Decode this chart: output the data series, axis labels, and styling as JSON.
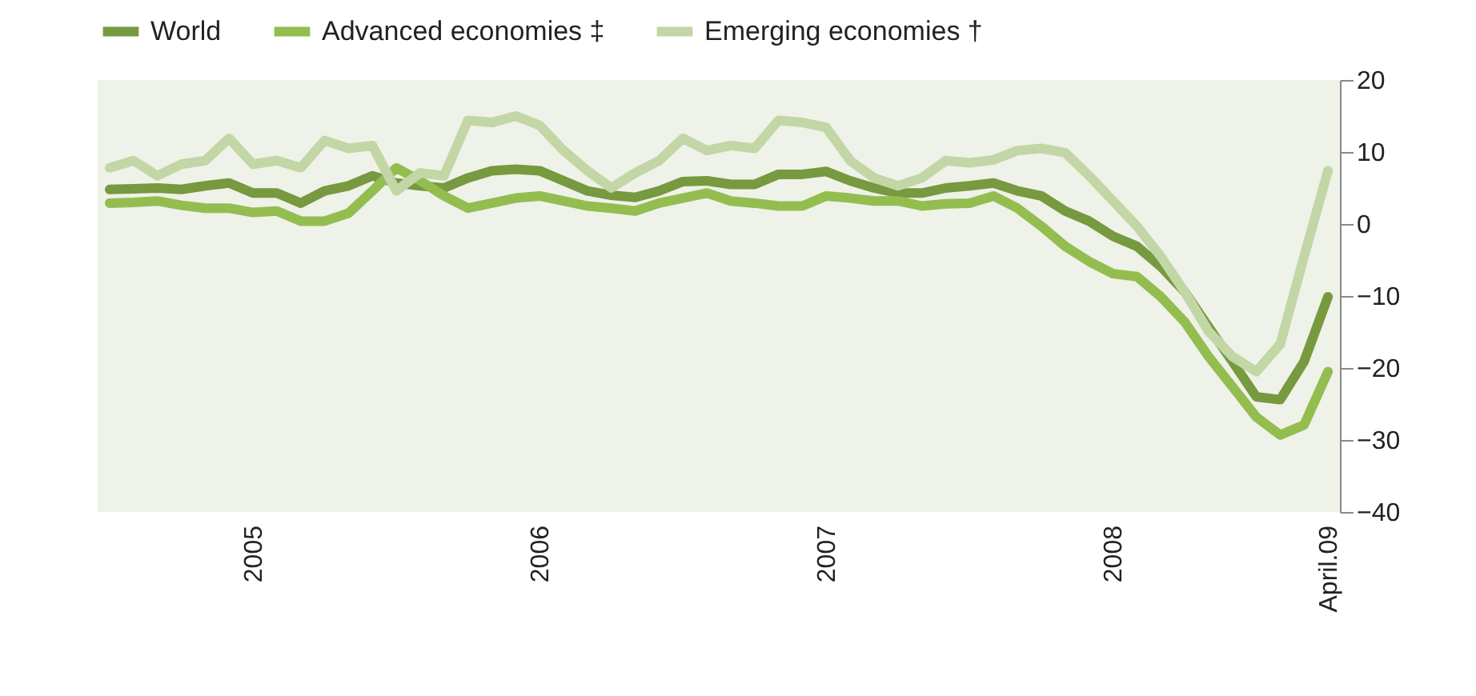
{
  "chart_data": {
    "type": "line",
    "categories": [
      null,
      null,
      null,
      null,
      null,
      null,
      "2005",
      null,
      null,
      null,
      null,
      null,
      null,
      null,
      null,
      null,
      null,
      null,
      "2006",
      null,
      null,
      null,
      null,
      null,
      null,
      null,
      null,
      null,
      null,
      null,
      "2007",
      null,
      null,
      null,
      null,
      null,
      null,
      null,
      null,
      null,
      null,
      null,
      "2008",
      null,
      null,
      null,
      null,
      null,
      null,
      null,
      null,
      "April.09"
    ],
    "series": [
      {
        "name": "World",
        "color": "#77993f",
        "values": [
          4.8,
          4.9,
          5,
          4.8,
          5.3,
          5.7,
          4.3,
          4.3,
          2.9,
          4.6,
          5.3,
          6.7,
          5.7,
          5.3,
          5,
          6.4,
          7.4,
          7.6,
          7.4,
          6,
          4.6,
          4,
          3.7,
          4.6,
          5.9,
          6,
          5.5,
          5.5,
          6.9,
          6.9,
          7.3,
          6,
          5,
          4.3,
          4.3,
          5,
          5.3,
          5.7,
          4.6,
          3.9,
          1.8,
          0.4,
          -1.7,
          -3.1,
          -5.9,
          -9.4,
          -14.3,
          -19.1,
          -24,
          -24.4,
          -19.1,
          -10.1
        ]
      },
      {
        "name": "Advanced economies ‡",
        "color": "#94bd50",
        "values": [
          2.9,
          3,
          3.2,
          2.6,
          2.2,
          2.2,
          1.6,
          1.8,
          0.4,
          0.4,
          1.5,
          4.6,
          7.8,
          6,
          3.9,
          2.2,
          2.9,
          3.6,
          3.9,
          3.2,
          2.5,
          2.2,
          1.8,
          2.9,
          3.6,
          4.3,
          3.2,
          2.9,
          2.5,
          2.5,
          3.9,
          3.6,
          3.2,
          3.2,
          2.5,
          2.8,
          2.9,
          3.9,
          2.2,
          -0.3,
          -3.1,
          -5.2,
          -6.9,
          -7.3,
          -10.1,
          -13.6,
          -18.4,
          -22.6,
          -26.8,
          -29.3,
          -27.9,
          -20.5
        ]
      },
      {
        "name": "Emerging economies †",
        "color": "#c3d6a6",
        "values": [
          7.8,
          8.8,
          6.7,
          8.3,
          8.8,
          11.9,
          8.3,
          8.8,
          7.8,
          11.6,
          10.5,
          10.9,
          4.6,
          7.1,
          6.7,
          14.4,
          14.1,
          15,
          13.7,
          10.2,
          7.4,
          5,
          7.1,
          8.8,
          11.9,
          10.2,
          10.9,
          10.5,
          14.4,
          14.1,
          13.4,
          8.8,
          6.4,
          5.3,
          6.4,
          8.8,
          8.5,
          8.9,
          10.2,
          10.5,
          9.9,
          6.7,
          3.2,
          -0.3,
          -4.5,
          -9.4,
          -14.9,
          -18.4,
          -20.5,
          -16.7,
          -4.5,
          7.4
        ]
      }
    ],
    "ylim": [
      -40,
      20
    ],
    "yticks": [
      -40,
      -30,
      -20,
      -10,
      0,
      10,
      20
    ],
    "legend": "top",
    "line_style": "solid",
    "marker": "none"
  }
}
